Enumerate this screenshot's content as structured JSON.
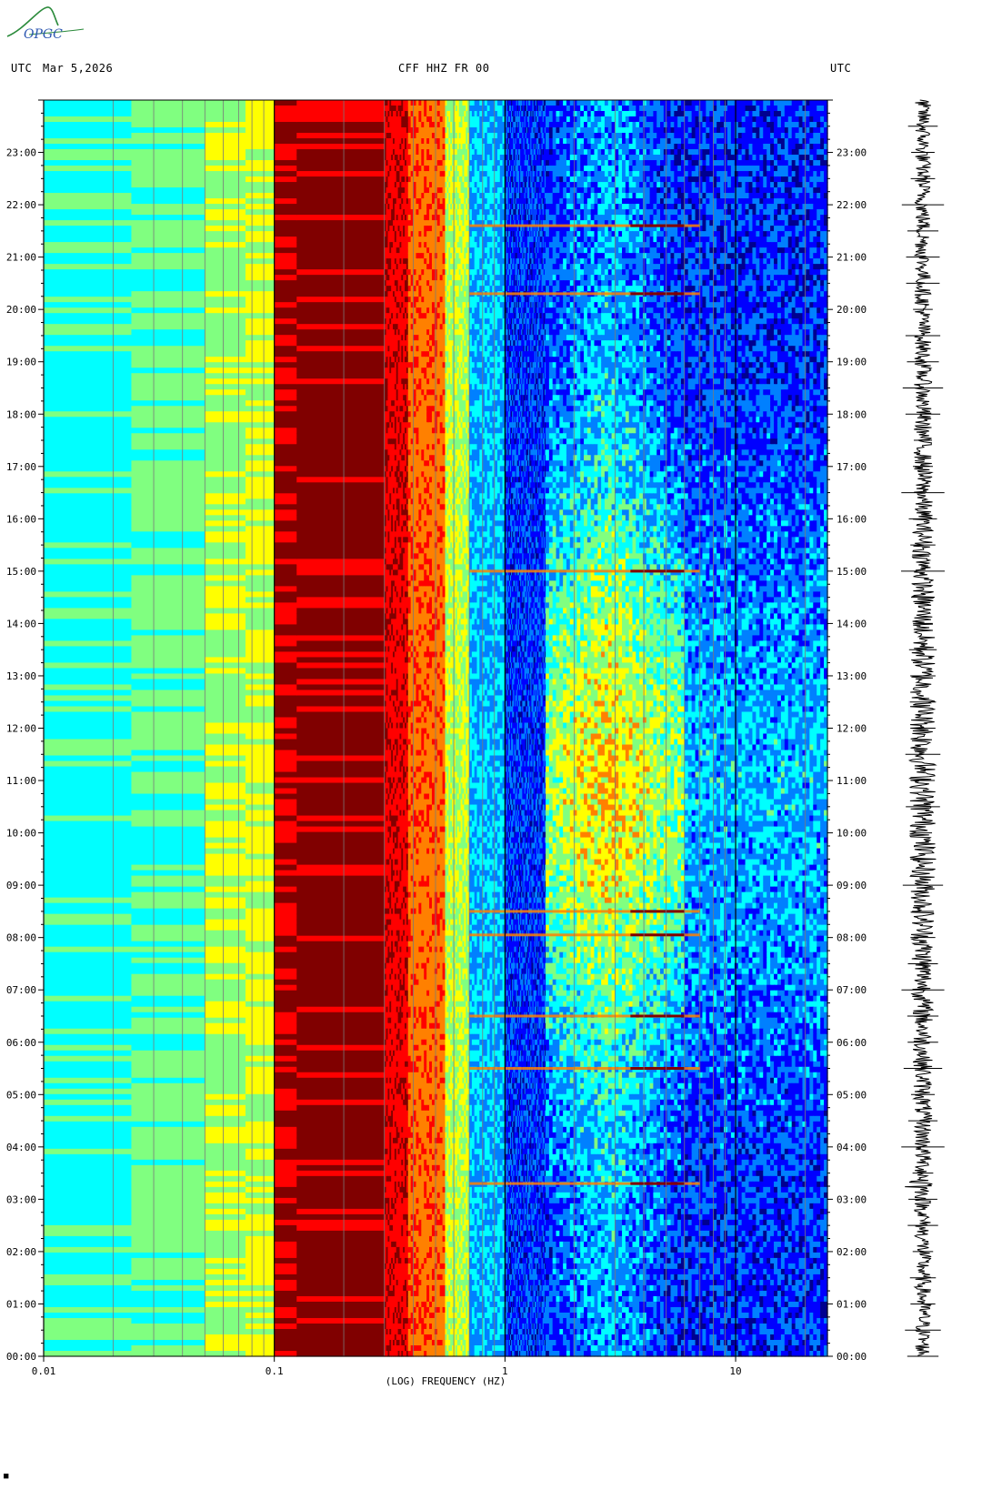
{
  "header": {
    "left_tz": "UTC",
    "date": "Mar 5,2026",
    "station": "CFF HHZ FR 00",
    "right_tz": "UTC"
  },
  "logo": {
    "text": "OPGC",
    "color": "#2a8a3a"
  },
  "chart_data": {
    "type": "heatmap",
    "title": "CFF HHZ FR 00",
    "xlabel": "(LOG) FREQUENCY (HZ)",
    "ylabel": "",
    "x_scale": "log",
    "xlim": [
      0.01,
      25
    ],
    "ylim_hours": [
      0,
      24
    ],
    "x_ticks": [
      {
        "value": 0.01,
        "label": "0.01"
      },
      {
        "value": 0.1,
        "label": "0.1"
      },
      {
        "value": 1,
        "label": "1"
      },
      {
        "value": 10,
        "label": "10"
      }
    ],
    "y_ticks": [
      "00:00",
      "01:00",
      "02:00",
      "03:00",
      "04:00",
      "05:00",
      "06:00",
      "07:00",
      "08:00",
      "09:00",
      "10:00",
      "11:00",
      "12:00",
      "13:00",
      "14:00",
      "15:00",
      "16:00",
      "17:00",
      "18:00",
      "19:00",
      "20:00",
      "21:00",
      "22:00",
      "23:00"
    ],
    "colormap": [
      "#00008f",
      "#0000ff",
      "#0080ff",
      "#00ffff",
      "#80ff80",
      "#ffff00",
      "#ff8000",
      "#ff0000",
      "#800000"
    ],
    "bands": [
      {
        "f0": 0.01,
        "f1": 0.024,
        "level": 3.2
      },
      {
        "f0": 0.024,
        "f1": 0.05,
        "level": 3.8
      },
      {
        "f0": 0.05,
        "f1": 0.075,
        "level": 4.3
      },
      {
        "f0": 0.075,
        "f1": 0.1,
        "level": 4.8
      },
      {
        "f0": 0.1,
        "f1": 0.125,
        "level": 7.5
      },
      {
        "f0": 0.125,
        "f1": 0.3,
        "level": 8.0
      },
      {
        "f0": 0.3,
        "f1": 0.38,
        "level": 7.2
      },
      {
        "f0": 0.38,
        "f1": 0.55,
        "level": 6.2
      },
      {
        "f0": 0.55,
        "f1": 0.7,
        "level": 4.5
      },
      {
        "f0": 0.7,
        "f1": 1.0,
        "level": 2.5
      },
      {
        "f0": 1.0,
        "f1": 1.5,
        "level": 1.3
      },
      {
        "f0": 1.5,
        "f1": 6.0,
        "level": 1.6,
        "daytime_peak": 4.5
      },
      {
        "f0": 6.0,
        "f1": 25,
        "level": 1.2,
        "daytime_peak": 2.5
      }
    ],
    "events_hours": [
      3.3,
      5.5,
      6.5,
      8.05,
      8.5,
      15.0,
      20.3,
      21.6
    ],
    "waveform": "seismogram trace for the day (right panel)"
  }
}
